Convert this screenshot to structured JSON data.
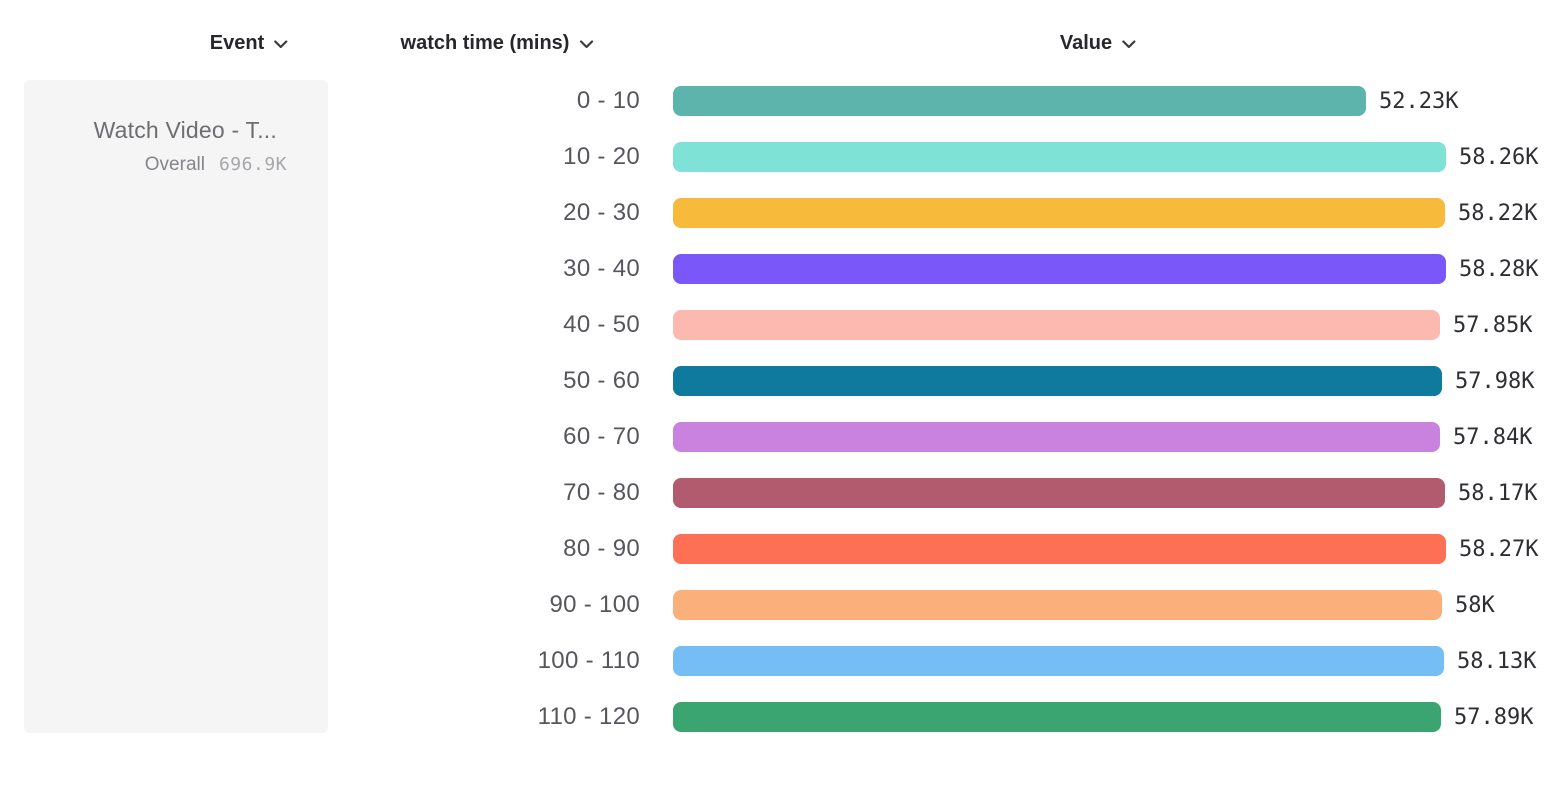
{
  "header": {
    "event_column_label": "Event",
    "breakdown_column_label": "watch time (mins)",
    "value_column_label": "Value",
    "chevron_color": "#3b3b40"
  },
  "event_card": {
    "title": "Watch Video - T...",
    "overall_label": "Overall",
    "overall_value": "696.9K"
  },
  "chart_data": {
    "type": "bar",
    "orientation": "horizontal",
    "title": "",
    "xlabel": "Value",
    "ylabel": "watch time (mins)",
    "legend": false,
    "grid": false,
    "categories": [
      "0 - 10",
      "10 - 20",
      "20 - 30",
      "30 - 40",
      "40 - 50",
      "50 - 60",
      "60 - 70",
      "70 - 80",
      "80 - 90",
      "90 - 100",
      "100 - 110",
      "110 - 120"
    ],
    "values": [
      52230,
      58260,
      58220,
      58280,
      57850,
      57980,
      57840,
      58170,
      58270,
      58000,
      58130,
      57890
    ],
    "value_labels": [
      "52.23K",
      "58.26K",
      "58.22K",
      "58.28K",
      "57.85K",
      "57.98K",
      "57.84K",
      "58.17K",
      "58.27K",
      "58K",
      "58.13K",
      "57.89K"
    ],
    "bar_colors": [
      "#5CB4AD",
      "#7FE2D7",
      "#F7BA3B",
      "#7957F8",
      "#FCB9B0",
      "#0F7A9E",
      "#C983DE",
      "#B25B6E",
      "#FD7055",
      "#FBAF7A",
      "#74BEF5",
      "#3AA571"
    ],
    "max_value": 58280,
    "xlim": [
      0,
      58280
    ]
  }
}
